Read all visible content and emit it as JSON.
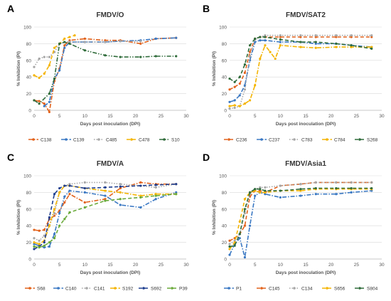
{
  "chart_data": [
    {
      "panel": "A",
      "type": "line",
      "title": "FMDV/O",
      "xlabel": "Days post inoculation (DPI)",
      "ylabel": "% Inhibition (PI)",
      "xlim": [
        0,
        30
      ],
      "ylim": [
        0,
        100
      ],
      "xticks": [
        0,
        5,
        10,
        15,
        20,
        25,
        30
      ],
      "yticks": [
        0,
        20,
        40,
        60,
        80,
        100
      ],
      "grid": true,
      "legend": "bottom",
      "series": [
        {
          "name": "C138",
          "color": "#e2621b",
          "dash": "dashdot",
          "marker": "circle",
          "x": [
            0,
            1,
            2,
            3,
            4,
            5,
            6,
            7,
            10,
            14,
            17,
            21,
            24,
            28
          ],
          "y": [
            12,
            11,
            8,
            -5,
            35,
            50,
            78,
            84,
            86,
            84,
            84,
            80,
            86,
            87
          ]
        },
        {
          "name": "C139",
          "color": "#3a78c3",
          "dash": "dashdot",
          "marker": "circle",
          "x": [
            2,
            3,
            4,
            5,
            6,
            7,
            10,
            14,
            17,
            21,
            24,
            28
          ],
          "y": [
            5,
            10,
            38,
            48,
            75,
            82,
            82,
            82,
            83,
            84,
            86,
            87
          ]
        },
        {
          "name": "C485",
          "color": "#a6a6a6",
          "dash": "dot",
          "marker": "circle",
          "x": [
            0,
            1,
            2,
            3,
            4,
            5,
            6,
            7,
            10,
            14,
            17,
            21
          ],
          "y": [
            52,
            62,
            64,
            64,
            70,
            80,
            82,
            82,
            82,
            82,
            83,
            83
          ]
        },
        {
          "name": "C478",
          "color": "#f4b400",
          "dash": "dash",
          "marker": "circle",
          "x": [
            0,
            1,
            2,
            3,
            4,
            5,
            6,
            7,
            8
          ],
          "y": [
            42,
            39,
            44,
            54,
            75,
            80,
            86,
            88,
            90
          ]
        },
        {
          "name": "S10",
          "color": "#2f6b3a",
          "dash": "dashdotdot",
          "marker": "circle",
          "x": [
            0,
            1,
            3,
            4,
            5,
            6,
            7,
            10,
            14,
            17,
            21,
            24,
            28
          ],
          "y": [
            12,
            8,
            20,
            38,
            80,
            82,
            80,
            72,
            66,
            64,
            64,
            65,
            65
          ]
        }
      ]
    },
    {
      "panel": "B",
      "type": "line",
      "title": "FMDV/SAT2",
      "xlabel": "Days post inoculation (DPI)",
      "ylabel": "% Inhibition (PI)",
      "xlim": [
        0,
        30
      ],
      "ylim": [
        0,
        100
      ],
      "xticks": [
        0,
        5,
        10,
        15,
        20,
        25,
        30
      ],
      "yticks": [
        0,
        20,
        40,
        60,
        80,
        100
      ],
      "grid": true,
      "legend": "bottom",
      "series": [
        {
          "name": "C236",
          "color": "#e2621b",
          "dash": "dash",
          "marker": "circle",
          "x": [
            0,
            1,
            2,
            3,
            4,
            5,
            6,
            7,
            10,
            14,
            17,
            21,
            24,
            28
          ],
          "y": [
            25,
            28,
            32,
            45,
            70,
            86,
            88,
            88,
            88,
            88,
            88,
            88,
            88,
            88
          ]
        },
        {
          "name": "C237",
          "color": "#3a78c3",
          "dash": "dashdot",
          "marker": "circle",
          "x": [
            0,
            1,
            2,
            3,
            4,
            5,
            6,
            7,
            10,
            14,
            17,
            21,
            24,
            28
          ],
          "y": [
            10,
            12,
            18,
            30,
            60,
            82,
            84,
            84,
            82,
            82,
            80,
            80,
            78,
            76
          ]
        },
        {
          "name": "C783",
          "color": "#a6a6a6",
          "dash": "dot",
          "marker": "circle",
          "x": [
            0,
            1,
            2,
            3,
            4,
            5,
            6,
            7,
            10,
            14,
            17,
            21,
            24,
            28
          ],
          "y": [
            2,
            3,
            5,
            25,
            65,
            85,
            88,
            90,
            90,
            90,
            90,
            90,
            90,
            90
          ]
        },
        {
          "name": "C784",
          "color": "#f4b400",
          "dash": "dashdot",
          "marker": "circle",
          "x": [
            0,
            1,
            2,
            3,
            4,
            5,
            6,
            7,
            8,
            9,
            10,
            14,
            17,
            21,
            24,
            28
          ],
          "y": [
            5,
            6,
            5,
            8,
            12,
            30,
            62,
            78,
            70,
            62,
            78,
            76,
            75,
            76,
            76,
            76
          ]
        },
        {
          "name": "S268",
          "color": "#2f6b3a",
          "dash": "dash",
          "marker": "circle",
          "x": [
            0,
            1,
            2,
            3,
            4,
            5,
            6,
            7,
            10,
            14,
            17,
            21,
            24,
            28
          ],
          "y": [
            38,
            34,
            40,
            55,
            78,
            86,
            88,
            88,
            85,
            82,
            82,
            80,
            78,
            74
          ]
        }
      ]
    },
    {
      "panel": "C",
      "type": "line",
      "title": "FMDV/A",
      "xlabel": "Days post inoculation (DPI)",
      "ylabel": "% Inhibition (PI)",
      "xlim": [
        0,
        30
      ],
      "ylim": [
        0,
        100
      ],
      "xticks": [
        0,
        5,
        10,
        15,
        20,
        25,
        30
      ],
      "yticks": [
        0,
        20,
        40,
        60,
        80,
        100
      ],
      "grid": true,
      "legend": "bottom",
      "series": [
        {
          "name": "S68",
          "color": "#e2621b",
          "dash": "dashdot",
          "marker": "circle",
          "x": [
            0,
            1,
            2,
            3,
            4,
            5,
            6,
            7,
            10,
            14,
            17,
            21,
            24,
            28
          ],
          "y": [
            35,
            34,
            35,
            48,
            52,
            58,
            68,
            78,
            68,
            72,
            85,
            92,
            90,
            90
          ]
        },
        {
          "name": "C140",
          "color": "#3a78c3",
          "dash": "dashdot",
          "marker": "circle",
          "x": [
            0,
            1,
            2,
            3,
            4,
            5,
            6,
            7,
            10,
            14,
            17,
            21,
            24,
            28
          ],
          "y": [
            18,
            16,
            14,
            15,
            30,
            55,
            75,
            82,
            80,
            76,
            65,
            62,
            72,
            80
          ]
        },
        {
          "name": "C141",
          "color": "#a6a6a6",
          "dash": "dot",
          "marker": "circle",
          "x": [
            0,
            1,
            2,
            3,
            4,
            5,
            6,
            7,
            10,
            14,
            17,
            21,
            24,
            28
          ],
          "y": [
            25,
            22,
            28,
            40,
            55,
            80,
            88,
            90,
            92,
            92,
            90,
            88,
            86,
            90
          ]
        },
        {
          "name": "S192",
          "color": "#f4b400",
          "dash": "dashdot",
          "marker": "circle",
          "x": [
            0,
            1,
            2,
            3,
            4,
            5,
            6,
            7,
            10,
            14,
            17,
            21,
            24,
            28
          ],
          "y": [
            20,
            18,
            22,
            40,
            60,
            80,
            88,
            88,
            85,
            82,
            80,
            76,
            78,
            78
          ]
        },
        {
          "name": "S692",
          "color": "#1f3f8f",
          "dash": "dash",
          "marker": "circle",
          "x": [
            0,
            1,
            2,
            3,
            4,
            5,
            6,
            7,
            10,
            14,
            17,
            21,
            24,
            28
          ],
          "y": [
            12,
            15,
            20,
            50,
            78,
            85,
            88,
            88,
            85,
            86,
            87,
            88,
            89,
            90
          ]
        },
        {
          "name": "P39",
          "color": "#6aaa3a",
          "dash": "dash",
          "marker": "circle",
          "x": [
            0,
            1,
            2,
            3,
            4,
            5,
            6,
            7,
            10,
            14,
            17,
            21,
            24,
            28
          ],
          "y": [
            15,
            14,
            16,
            20,
            25,
            40,
            48,
            56,
            62,
            70,
            72,
            74,
            76,
            78
          ]
        }
      ]
    },
    {
      "panel": "D",
      "type": "line",
      "title": "FMDV/Asia1",
      "xlabel": "Days post inoculation (DPI)",
      "ylabel": "% Inhibition (PI)",
      "xlim": [
        0,
        30
      ],
      "ylim": [
        0,
        100
      ],
      "xticks": [
        0,
        5,
        10,
        15,
        20,
        25,
        30
      ],
      "yticks": [
        0,
        20,
        40,
        60,
        80,
        100
      ],
      "grid": true,
      "legend": "bottom",
      "series": [
        {
          "name": "P1",
          "color": "#3a78c3",
          "dash": "dashdot",
          "marker": "circle",
          "x": [
            0,
            1,
            2,
            3,
            4,
            5,
            6,
            7,
            10,
            14,
            17,
            21,
            24,
            28
          ],
          "y": [
            5,
            18,
            25,
            2,
            40,
            76,
            80,
            78,
            74,
            76,
            78,
            78,
            80,
            82
          ]
        },
        {
          "name": "C145",
          "color": "#e2621b",
          "dash": "dash",
          "marker": "circle",
          "x": [
            0,
            1,
            2,
            3,
            4,
            5,
            6,
            7,
            10,
            14,
            17,
            21,
            24,
            28
          ],
          "y": [
            22,
            25,
            30,
            40,
            75,
            82,
            82,
            80,
            88,
            90,
            92,
            92,
            92,
            92
          ]
        },
        {
          "name": "C134",
          "color": "#a6a6a6",
          "dash": "dot",
          "marker": "circle",
          "x": [
            0,
            1,
            2,
            3,
            4,
            5,
            6,
            7,
            10,
            14,
            17,
            21,
            24,
            28
          ],
          "y": [
            18,
            22,
            30,
            55,
            78,
            84,
            86,
            86,
            88,
            90,
            92,
            92,
            92,
            92
          ]
        },
        {
          "name": "S656",
          "color": "#f4b400",
          "dash": "dash",
          "marker": "circle",
          "x": [
            0,
            1,
            2,
            3,
            4,
            5,
            6,
            7,
            10,
            14,
            17,
            21,
            24,
            28
          ],
          "y": [
            12,
            20,
            45,
            72,
            80,
            82,
            80,
            80,
            82,
            82,
            84,
            84,
            84,
            84
          ]
        },
        {
          "name": "S804",
          "color": "#2f6b3a",
          "dash": "dash",
          "marker": "circle",
          "x": [
            0,
            1,
            2,
            3,
            4,
            5,
            6,
            7,
            10,
            14,
            17,
            21,
            24,
            28
          ],
          "y": [
            15,
            16,
            30,
            60,
            80,
            84,
            84,
            82,
            82,
            84,
            85,
            85,
            85,
            85
          ]
        }
      ]
    }
  ]
}
